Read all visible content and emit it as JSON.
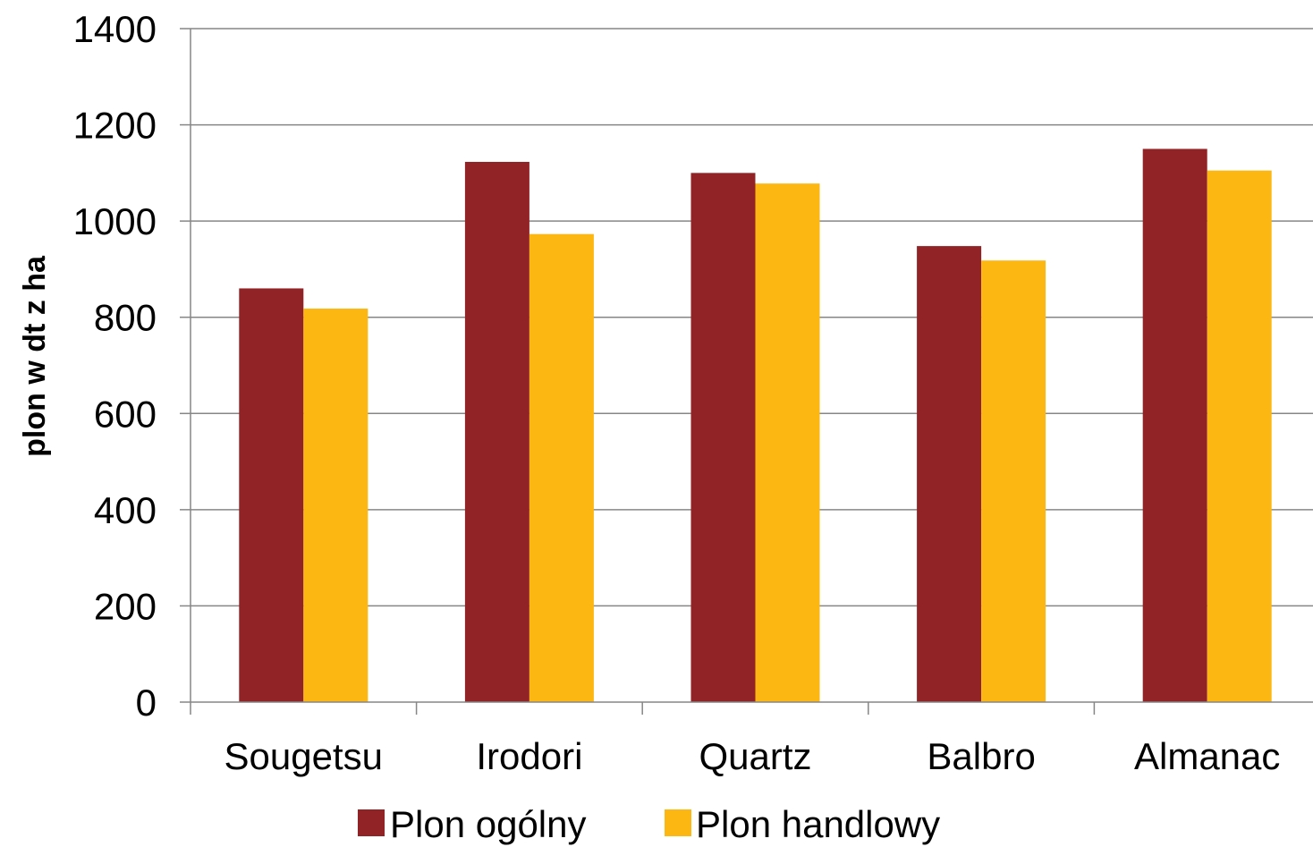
{
  "chart_data": {
    "type": "bar",
    "categories": [
      "Sougetsu",
      "Irodori",
      "Quartz",
      "Balbro",
      "Almanac"
    ],
    "series": [
      {
        "name": "Plon ogólny",
        "color": "#912326",
        "values": [
          860,
          1123,
          1100,
          948,
          1150
        ]
      },
      {
        "name": "Plon handlowy",
        "color": "#FDB712",
        "values": [
          818,
          973,
          1078,
          918,
          1105
        ]
      }
    ],
    "ylabel": "plon w dt z ha",
    "xlabel": "",
    "ylim": [
      0,
      1400
    ],
    "yticks": [
      0,
      200,
      400,
      600,
      800,
      1000,
      1200,
      1400
    ],
    "grid": true,
    "legend": "bottom"
  }
}
